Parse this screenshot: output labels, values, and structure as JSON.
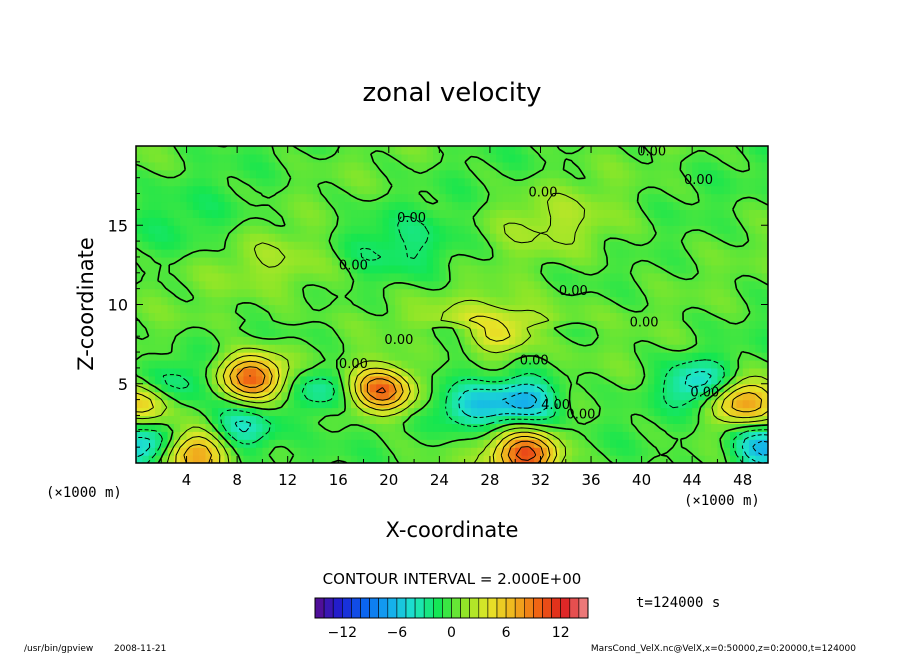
{
  "chart_data": {
    "type": "heatmap",
    "title": "zonal velocity",
    "xlabel": "X-coordinate",
    "ylabel": "Z-coordinate",
    "x_unit": "(×1000 m)",
    "y_unit": "(×1000 m)",
    "xlim": [
      0,
      50
    ],
    "ylim": [
      0,
      20
    ],
    "x_ticks": [
      "4",
      "8",
      "12",
      "16",
      "20",
      "24",
      "28",
      "32",
      "36",
      "40",
      "44",
      "48"
    ],
    "y_ticks": [
      "5",
      "10",
      "15"
    ],
    "contour_interval_text": "CONTOUR INTERVAL = 2.000E+00",
    "contour_labels": [
      {
        "text": "0.00",
        "x": 40.8,
        "z": 19.4
      },
      {
        "text": "0.00",
        "x": 44.5,
        "z": 17.6
      },
      {
        "text": "0.00",
        "x": 32.2,
        "z": 16.8
      },
      {
        "text": "0.00",
        "x": 21.8,
        "z": 15.2
      },
      {
        "text": "0.00",
        "x": 17.2,
        "z": 12.2
      },
      {
        "text": "0.00",
        "x": 34.6,
        "z": 10.6
      },
      {
        "text": "0.00",
        "x": 40.2,
        "z": 8.6
      },
      {
        "text": "0.00",
        "x": 20.8,
        "z": 7.5
      },
      {
        "text": "0.00",
        "x": 17.2,
        "z": 6.0
      },
      {
        "text": "0.00",
        "x": 31.5,
        "z": 6.2
      },
      {
        "text": "4.00",
        "x": 33.2,
        "z": 3.4
      },
      {
        "text": "0.00",
        "x": 35.2,
        "z": 2.8
      },
      {
        "text": "0.00",
        "x": 45.0,
        "z": 4.2
      }
    ],
    "colorbar": {
      "range": [
        -15,
        15
      ],
      "ticks": [
        "−12",
        "−6",
        "0",
        "6",
        "12"
      ],
      "tick_values": [
        -12,
        -6,
        0,
        6,
        12
      ],
      "colors_low_to_high": [
        "#5a0c8c",
        "#1e1ed2",
        "#0a64f0",
        "#14aaf0",
        "#1ee6c8",
        "#14e650",
        "#8ce628",
        "#e6e628",
        "#f0b41e",
        "#f06414",
        "#dc1e1e",
        "#f08c8c"
      ]
    },
    "time_label": "t=124000 s",
    "features": [
      {
        "x": 9.2,
        "z": 5.5,
        "u": 10
      },
      {
        "x": 19.4,
        "z": 4.6,
        "u": 10
      },
      {
        "x": 30.8,
        "z": 0.5,
        "u": 11
      },
      {
        "x": 48.0,
        "z": 3.9,
        "u": 8
      },
      {
        "x": 4.6,
        "z": 0.6,
        "u": 8
      },
      {
        "x": 0.6,
        "z": 3.8,
        "u": 6
      },
      {
        "x": 30.8,
        "z": 4.0,
        "u": -7
      },
      {
        "x": 26.6,
        "z": 3.5,
        "u": -5
      },
      {
        "x": 44.5,
        "z": 5.0,
        "u": -5
      },
      {
        "x": 14.5,
        "z": 4.6,
        "u": -4
      },
      {
        "x": 3.0,
        "z": 5.0,
        "u": -3
      },
      {
        "x": 8.5,
        "z": 2.2,
        "u": -5
      },
      {
        "x": 0.6,
        "z": 1.0,
        "u": -6
      },
      {
        "x": 49.8,
        "z": 1.0,
        "u": -7
      },
      {
        "x": 28.8,
        "z": 8.1,
        "u": 5
      },
      {
        "x": 33.5,
        "z": 15.0,
        "u": 2
      },
      {
        "x": 21.0,
        "z": 13.5,
        "u": -2
      },
      {
        "x": 12.0,
        "z": 12.5,
        "u": 2
      },
      {
        "x": 5.0,
        "z": 15.0,
        "u": -1
      }
    ]
  },
  "footer": {
    "program": "/usr/bin/gpview",
    "date": "2008-11-21",
    "source": "MarsCond_VelX.nc@VelX,x=0:50000,z=0:20000,t=124000"
  }
}
